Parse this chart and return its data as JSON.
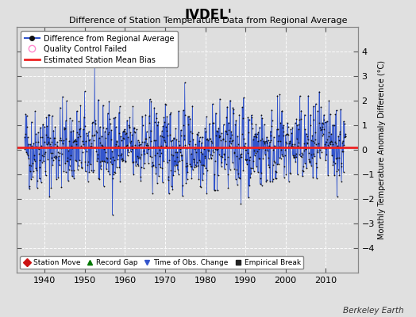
{
  "title": "IVDEL'",
  "subtitle": "Difference of Station Temperature Data from Regional Average",
  "ylabel": "Monthly Temperature Anomaly Difference (°C)",
  "xlabel_bottom": "Berkeley Earth",
  "xlim": [
    1933,
    2018
  ],
  "ylim": [
    -5,
    5
  ],
  "yticks": [
    -4,
    -3,
    -2,
    -1,
    0,
    1,
    2,
    3,
    4
  ],
  "xticks": [
    1940,
    1950,
    1960,
    1970,
    1980,
    1990,
    2000,
    2010
  ],
  "bias": 0.1,
  "line_color": "#3355CC",
  "dot_color": "#111111",
  "bias_color": "#EE2222",
  "fig_facecolor": "#E0E0E0",
  "ax_facecolor": "#DEDEDE",
  "grid_color": "#FFFFFF",
  "seed": 42,
  "n_points": 960,
  "years_start": 1935.0,
  "years_end": 2015.0
}
